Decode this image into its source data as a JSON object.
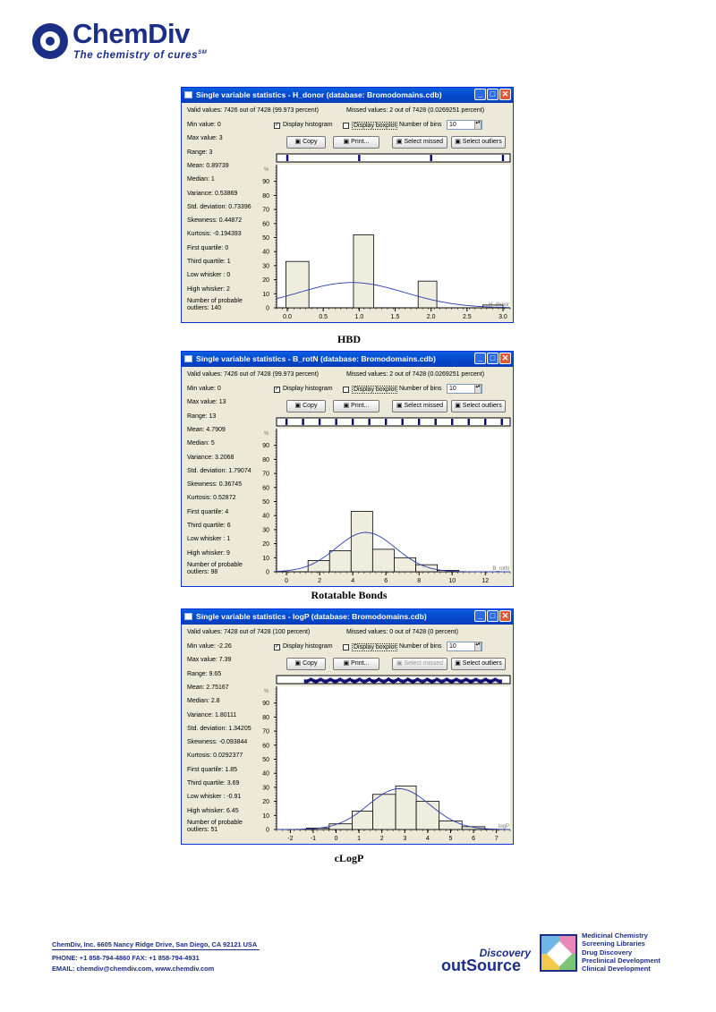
{
  "brand": {
    "name": "ChemDiv",
    "tagline": "The chemistry of cures",
    "tm": "SM"
  },
  "windows": [
    {
      "title": "Single variable statistics - H_donor (database: Bromodomains.cdb)",
      "valid": "Valid values: 7426 out of 7428 (99.973 percent)",
      "missed": "Missed values: 2 out of 7428 (0.0269251 percent)",
      "stats": [
        "Min value: 0",
        "Max value: 3",
        "Range: 3",
        "Mean: 0.89739",
        "Median: 1",
        "Variance: 0.53869",
        "Std. deviation: 0.73396",
        "Skewness: 0.44872",
        "Kurtosis: -0.194393",
        "First quartile: 0",
        "Third quartile: 1",
        "Low whisker : 0",
        "High whisker: 2"
      ],
      "outliers": [
        "Number of probable",
        "outliers: 140"
      ],
      "display_histogram": "Display histogram",
      "display_boxplot": "Display boxplot",
      "bins_label": "Number of bins",
      "bins": "10",
      "copy": "Copy",
      "print": "Print...",
      "select_missed": "Select missed",
      "select_outliers": "Select outliers",
      "select_missed_disabled": false,
      "caption": "HBD"
    },
    {
      "title": "Single variable statistics - B_rotN (database: Bromodomains.cdb)",
      "valid": "Valid values: 7426 out of 7428 (99.973 percent)",
      "missed": "Missed values: 2 out of 7428 (0.0269251 percent)",
      "stats": [
        "Min value: 0",
        "Max value: 13",
        "Range: 13",
        "Mean: 4.7909",
        "Median: 5",
        "Variance: 3.2068",
        "Std. deviation: 1.79074",
        "Skewness: 0.36745",
        "Kurtosis: 0.52872",
        "First quartile: 4",
        "Third quartile: 6",
        "Low whisker : 1",
        "High whisker: 9"
      ],
      "outliers": [
        "Number of probable",
        "outliers: 98"
      ],
      "display_histogram": "Display histogram",
      "display_boxplot": "Display boxplot",
      "bins_label": "Number of bins",
      "bins": "10",
      "copy": "Copy",
      "print": "Print...",
      "select_missed": "Select missed",
      "select_outliers": "Select outliers",
      "select_missed_disabled": false,
      "caption": "Rotatable Bonds"
    },
    {
      "title": "Single variable statistics - logP (database: Bromodomains.cdb)",
      "valid": "Valid values: 7428 out of 7428 (100 percent)",
      "missed": "Missed values: 0 out of 7428 (0 percent)",
      "stats": [
        "Min value: -2.26",
        "Max value: 7.39",
        "Range: 9.65",
        "Mean: 2.75167",
        "Median: 2.8",
        "Variance: 1.80111",
        "Std. deviation: 1.34205",
        "Skewness: -0.093844",
        "Kurtosis: 0.0292377",
        "First quartile: 1.85",
        "Third quartile: 3.69",
        "Low whisker : -0.91",
        "High whisker: 6.45"
      ],
      "outliers": [
        "Number of probable",
        "outliers: 51"
      ],
      "display_histogram": "Display histogram",
      "display_boxplot": "Display boxplot",
      "bins_label": "Number of bins",
      "bins": "10",
      "copy": "Copy",
      "print": "Print...",
      "select_missed": "Select missed",
      "select_outliers": "Select outliers",
      "select_missed_disabled": true,
      "caption": "cLogP"
    }
  ],
  "chart_data": [
    {
      "type": "bar",
      "ylabel": "%",
      "xlabel": "H_donor",
      "xlim": [
        -0.15,
        3.1
      ],
      "ylim": [
        0,
        100
      ],
      "x_ticks": [
        0.0,
        0.5,
        1.0,
        1.5,
        2.0,
        2.5,
        3.0
      ],
      "x_tick_labels": [
        "0.0",
        "0.5",
        "1.0",
        "1.5",
        "2.0",
        "2.5",
        "3.0"
      ],
      "y_ticks": [
        0,
        10,
        20,
        30,
        40,
        50,
        60,
        70,
        80,
        90
      ],
      "bars": [
        {
          "x0": -0.02,
          "x1": 0.3,
          "value": 33
        },
        {
          "x0": 0.92,
          "x1": 1.2,
          "value": 52
        },
        {
          "x0": 1.82,
          "x1": 2.08,
          "value": 19
        },
        {
          "x0": 2.72,
          "x1": 3.0,
          "value": 2
        }
      ],
      "curve": {
        "mean": 0.89739,
        "sd": 0.73396,
        "peak": 18
      },
      "rug": [
        0,
        1,
        2,
        3
      ]
    },
    {
      "type": "bar",
      "ylabel": "%",
      "xlabel": "B_rotN",
      "xlim": [
        -0.6,
        13.5
      ],
      "ylim": [
        0,
        100
      ],
      "x_ticks": [
        0,
        2,
        4,
        6,
        8,
        10,
        12
      ],
      "x_tick_labels": [
        "0",
        "2",
        "4",
        "6",
        "8",
        "10",
        "12"
      ],
      "y_ticks": [
        0,
        10,
        20,
        30,
        40,
        50,
        60,
        70,
        80,
        90
      ],
      "bars": [
        {
          "x0": 1.3,
          "x1": 2.6,
          "value": 8
        },
        {
          "x0": 2.6,
          "x1": 3.9,
          "value": 15
        },
        {
          "x0": 3.9,
          "x1": 5.2,
          "value": 43
        },
        {
          "x0": 5.2,
          "x1": 6.5,
          "value": 16
        },
        {
          "x0": 6.5,
          "x1": 7.8,
          "value": 10
        },
        {
          "x0": 7.8,
          "x1": 9.1,
          "value": 5
        },
        {
          "x0": 9.1,
          "x1": 10.4,
          "value": 1
        }
      ],
      "curve": {
        "mean": 4.7909,
        "sd": 1.79074,
        "peak": 28
      },
      "rug": [
        0,
        1,
        2,
        3,
        4,
        5,
        6,
        7,
        8,
        9,
        10,
        11,
        12,
        13
      ]
    },
    {
      "type": "bar",
      "ylabel": "%",
      "xlabel": "logP",
      "xlim": [
        -2.6,
        7.6
      ],
      "ylim": [
        0,
        100
      ],
      "x_ticks": [
        -2,
        -1,
        0,
        1,
        2,
        3,
        4,
        5,
        6,
        7
      ],
      "x_tick_labels": [
        "-2",
        "-1",
        "0",
        "1",
        "2",
        "3",
        "4",
        "5",
        "6",
        "7"
      ],
      "y_ticks": [
        0,
        10,
        20,
        30,
        40,
        50,
        60,
        70,
        80,
        90
      ],
      "bars": [
        {
          "x0": -1.3,
          "x1": -0.3,
          "value": 1
        },
        {
          "x0": -0.3,
          "x1": 0.7,
          "value": 4
        },
        {
          "x0": 0.7,
          "x1": 1.6,
          "value": 13
        },
        {
          "x0": 1.6,
          "x1": 2.6,
          "value": 25
        },
        {
          "x0": 2.6,
          "x1": 3.5,
          "value": 31
        },
        {
          "x0": 3.5,
          "x1": 4.5,
          "value": 20
        },
        {
          "x0": 4.5,
          "x1": 5.5,
          "value": 6
        },
        {
          "x0": 5.5,
          "x1": 6.5,
          "value": 2
        }
      ],
      "curve": {
        "mean": 2.75167,
        "sd": 1.34205,
        "peak": 29
      },
      "rug_range": [
        -1.4,
        7.2
      ]
    }
  ],
  "footer": {
    "address": "ChemDiv, Inc. 6605 Nancy Ridge Drive, San Diego, CA 92121 USA",
    "phone": "PHONE: +1 858-794-4860   FAX: +1 858-794-4931",
    "email": "EMAIL: chemdiv@chemdiv.com, www.chemdiv.com",
    "discovery": "Discovery",
    "outsource": "outSource",
    "services": [
      "Medicinal Chemistry",
      "Screening Libraries",
      "Drug Discovery",
      "Preclinical Development",
      "Clinical Development"
    ]
  },
  "colors": {
    "brand_blue": "#1b2f86",
    "bar_fill": "#efedde",
    "curve": "#2a3cb0",
    "rug": "#08086b"
  }
}
